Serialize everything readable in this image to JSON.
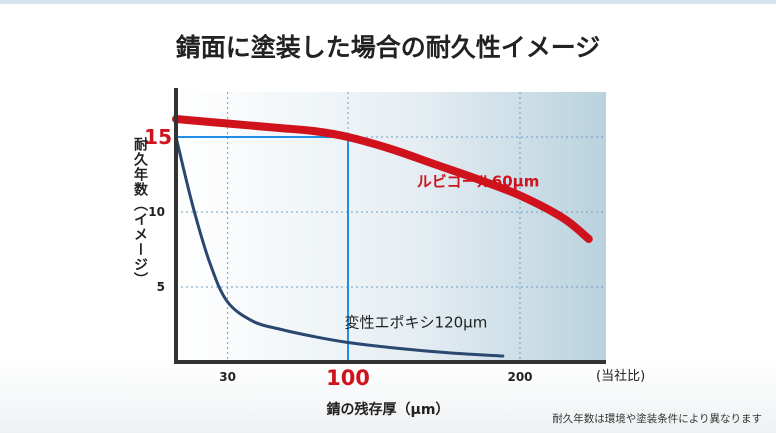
{
  "chart_data": {
    "type": "line",
    "title": "錆面に塗装した場合の耐久性イメージ",
    "ylabel": "耐久年数（イメージ）",
    "xlabel": "錆の残存厚（μm）",
    "x_unit": "(当社比)",
    "footnote": "耐久年数は環境や塗装条件により異なります",
    "xlim": [
      0,
      250
    ],
    "ylim": [
      0,
      18
    ],
    "x_ticks": [
      {
        "value": 30,
        "label": "30"
      },
      {
        "value": 100,
        "label": "100"
      },
      {
        "value": 200,
        "label": "200"
      }
    ],
    "y_ticks": [
      {
        "value": 5,
        "label": "5"
      },
      {
        "value": 10,
        "label": "10"
      },
      {
        "value": 15,
        "label": "15"
      }
    ],
    "highlight": {
      "x": 100,
      "y": 15,
      "x_label": "100",
      "y_label": "15",
      "color": "#1e8ee6"
    },
    "grid": true,
    "series": [
      {
        "name": "ルビゴール60μm",
        "color": "#d0121c",
        "x": [
          0,
          30,
          60,
          80,
          100,
          125,
          150,
          175,
          200,
          225,
          240
        ],
        "y": [
          16.2,
          15.9,
          15.6,
          15.4,
          15.0,
          14.2,
          13.2,
          12.2,
          11.1,
          9.6,
          8.2
        ]
      },
      {
        "name": "変性エポキシ120μm",
        "color": "#2a4770",
        "x": [
          0,
          10,
          20,
          30,
          45,
          60,
          80,
          100,
          130,
          160,
          190
        ],
        "y": [
          15.0,
          10.3,
          6.5,
          4.0,
          2.7,
          2.2,
          1.7,
          1.3,
          0.9,
          0.6,
          0.4
        ]
      }
    ]
  }
}
